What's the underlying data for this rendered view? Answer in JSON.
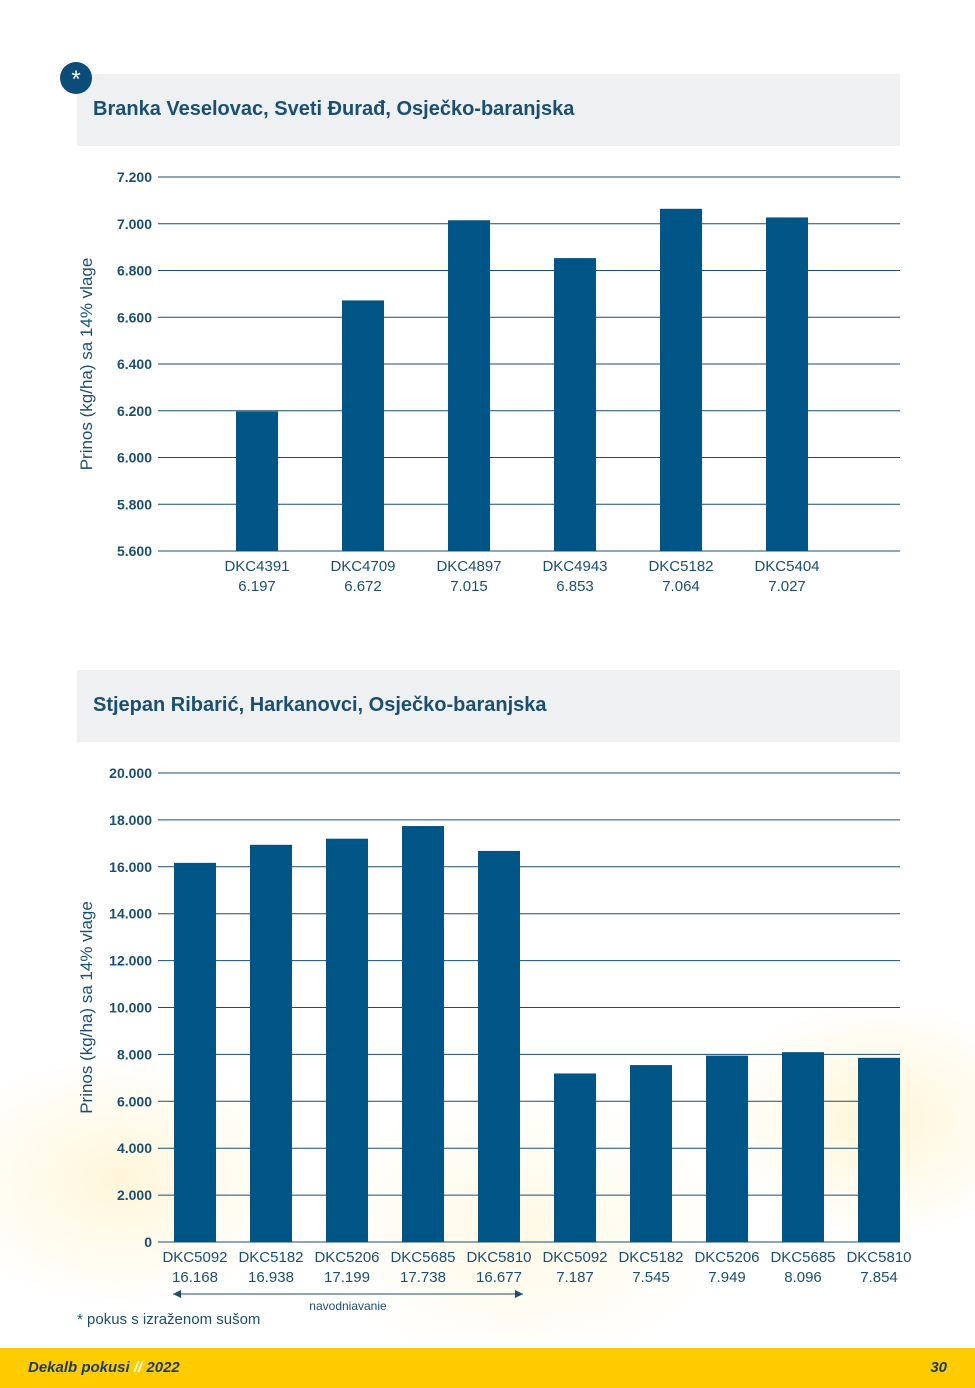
{
  "page": {
    "star_symbol": "*",
    "footnote": "* pokus s izraženom sušom",
    "footer_brand": "Dekalb pokusi",
    "footer_sep": "//",
    "footer_year": "2022",
    "page_number": "30"
  },
  "colors": {
    "bar": "#005587",
    "grid": "#1b4f72",
    "text": "#1b4f72"
  },
  "chart_data": [
    {
      "type": "bar",
      "title": "Branka Veselovac, Sveti Đurađ, Osječko-baranjska",
      "ylabel": "Prinos (kg/ha) sa 14% vlage",
      "ylim": [
        5600,
        7200
      ],
      "yticks": [
        5600,
        5800,
        6000,
        6200,
        6400,
        6600,
        6800,
        7000,
        7200
      ],
      "ytick_labels": [
        "5.600",
        "5.800",
        "6.000",
        "6.200",
        "6.400",
        "6.600",
        "6.800",
        "7.000",
        "7.200"
      ],
      "categories": [
        "DKC4391",
        "DKC4709",
        "DKC4897",
        "DKC4943",
        "DKC5182",
        "DKC5404"
      ],
      "value_labels": [
        "6.197",
        "6.672",
        "7.015",
        "6.853",
        "7.064",
        "7.027"
      ],
      "values": [
        6197,
        6672,
        7015,
        6853,
        7064,
        7027
      ],
      "grid": true
    },
    {
      "type": "bar",
      "title": "Stjepan Ribarić, Harkanovci, Osječko-baranjska",
      "ylabel": "Prinos (kg/ha) sa 14% vlage",
      "ylim": [
        0,
        20000
      ],
      "yticks": [
        0,
        2000,
        4000,
        6000,
        8000,
        10000,
        12000,
        14000,
        16000,
        18000,
        20000
      ],
      "ytick_labels": [
        "0",
        "2.000",
        "4.000",
        "6.000",
        "8.000",
        "10.000",
        "12.000",
        "14.000",
        "16.000",
        "18.000",
        "20.000"
      ],
      "categories": [
        "DKC5092",
        "DKC5182",
        "DKC5206",
        "DKC5685",
        "DKC5810",
        "DKC5092",
        "DKC5182",
        "DKC5206",
        "DKC5685",
        "DKC5810"
      ],
      "value_labels": [
        "16.168",
        "16.938",
        "17.199",
        "17.738",
        "16.677",
        "7.187",
        "7.545",
        "7.949",
        "8.096",
        "7.854"
      ],
      "values": [
        16168,
        16938,
        17199,
        17738,
        16677,
        7187,
        7545,
        7949,
        8096,
        7854
      ],
      "annotation": "navodnjavanje",
      "grid": true
    }
  ]
}
